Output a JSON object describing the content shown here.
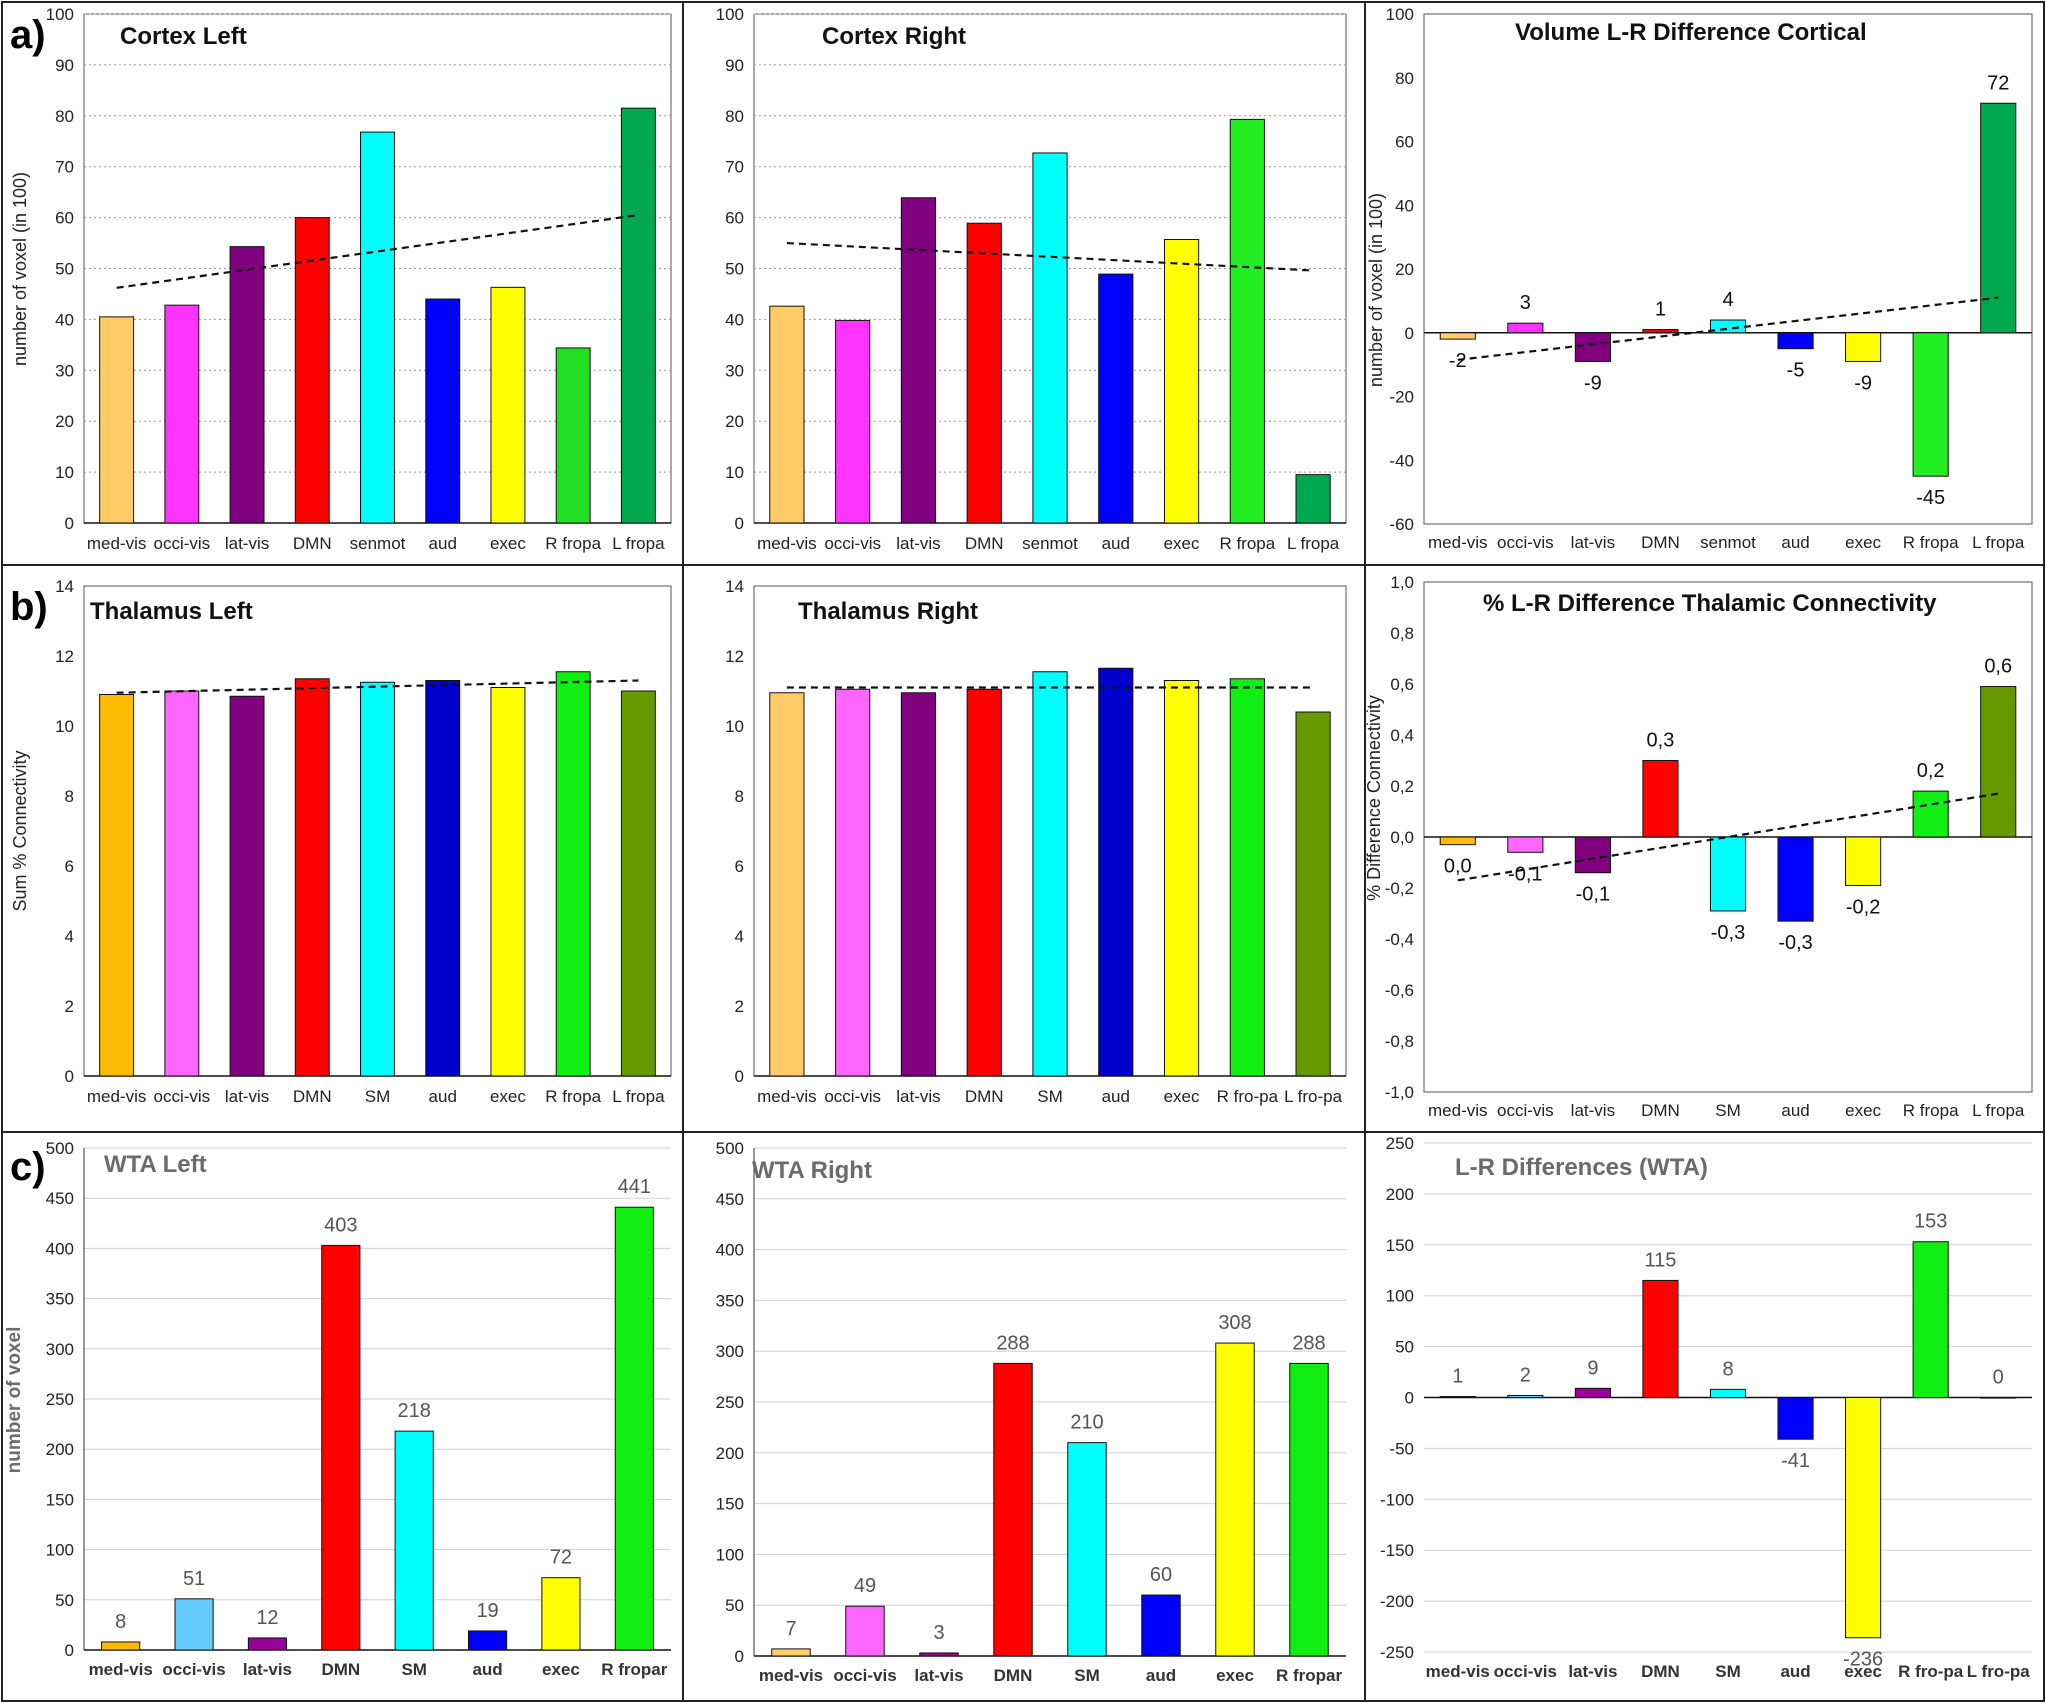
{
  "panel_labels": [
    "a)",
    "b)",
    "c)"
  ],
  "chart_data": [
    {
      "type": "bar",
      "title": "Cortex Left",
      "ylabel": "number of voxel (in 100)",
      "categories": [
        "med-vis",
        "occi-vis",
        "lat-vis",
        "DMN",
        "senmot",
        "aud",
        "exec",
        "R fropa",
        "L fropa"
      ],
      "values": [
        40.5,
        42.8,
        54.3,
        60.0,
        76.8,
        44.0,
        46.3,
        34.4,
        81.5
      ],
      "colors": [
        "#ffcc66",
        "#ff33ff",
        "#800080",
        "#ff0000",
        "#00ffff",
        "#0000ff",
        "#ffff00",
        "#22dd22",
        "#00a850"
      ],
      "ylim": [
        0,
        100
      ],
      "ystep": 10,
      "grid": true,
      "trend": [
        46.2,
        60.5
      ]
    },
    {
      "type": "bar",
      "title": "Cortex Right",
      "ylabel": "",
      "categories": [
        "med-vis",
        "occi-vis",
        "lat-vis",
        "DMN",
        "senmot",
        "aud",
        "exec",
        "R fropa",
        "L fropa"
      ],
      "values": [
        42.6,
        39.8,
        63.9,
        58.9,
        72.7,
        48.9,
        55.7,
        79.3,
        9.5
      ],
      "colors": [
        "#ffcc66",
        "#ff33ff",
        "#800080",
        "#ff0000",
        "#00ffff",
        "#0000ff",
        "#ffff00",
        "#22ee22",
        "#00a850"
      ],
      "ylim": [
        0,
        100
      ],
      "ystep": 10,
      "grid": true,
      "trend": [
        55.0,
        49.6
      ]
    },
    {
      "type": "bar",
      "title": "Volume L-R Difference Cortical",
      "ylabel": "number of voxel (in 100)",
      "categories": [
        "med-vis",
        "occi-vis",
        "lat-vis",
        "DMN",
        "senmot",
        "aud",
        "exec",
        "R fropa",
        "L fropa"
      ],
      "values": [
        -2,
        3,
        -9,
        1,
        4,
        -5,
        -9,
        -45,
        72
      ],
      "labels": [
        "-2",
        "3",
        "-9",
        "1",
        "4",
        "-5",
        "-9",
        "-45",
        "72"
      ],
      "colors": [
        "#ffcc66",
        "#ff33ff",
        "#800080",
        "#ff0000",
        "#00ffff",
        "#0000ff",
        "#ffff00",
        "#22ee22",
        "#00a850"
      ],
      "ylim": [
        -60,
        100
      ],
      "ystep": 20,
      "grid": false,
      "trend": [
        -8.5,
        11
      ]
    },
    {
      "type": "bar",
      "title": "Thalamus Left",
      "ylabel": "Sum % Connectivity",
      "categories": [
        "med-vis",
        "occi-vis",
        "lat-vis",
        "DMN",
        "SM",
        "aud",
        "exec",
        "R fropa",
        "L fropa"
      ],
      "values": [
        10.9,
        11.0,
        10.85,
        11.35,
        11.25,
        11.3,
        11.1,
        11.55,
        11.0
      ],
      "colors": [
        "#ffbb00",
        "#ff66ff",
        "#800080",
        "#ff0000",
        "#00ffff",
        "#0000cc",
        "#ffff00",
        "#11ee11",
        "#669900"
      ],
      "ylim": [
        0,
        14
      ],
      "ystep": 2,
      "grid": false,
      "trend": [
        10.95,
        11.3
      ]
    },
    {
      "type": "bar",
      "title": "Thalamus Right",
      "ylabel": "",
      "categories": [
        "med-vis",
        "occi-vis",
        "lat-vis",
        "DMN",
        "SM",
        "aud",
        "exec",
        "R fro-pa",
        "L fro-pa"
      ],
      "values": [
        10.95,
        11.05,
        10.95,
        11.05,
        11.55,
        11.65,
        11.3,
        11.35,
        10.4
      ],
      "colors": [
        "#ffcc66",
        "#ff66ff",
        "#800080",
        "#ff0000",
        "#00ffff",
        "#0000cc",
        "#ffff00",
        "#11ee11",
        "#669900"
      ],
      "ylim": [
        0,
        14
      ],
      "ystep": 2,
      "grid": false,
      "trend": [
        11.1,
        11.1
      ]
    },
    {
      "type": "bar",
      "title": "% L-R  Difference Thalamic Connectivity",
      "ylabel": "% Difference Connectivity",
      "categories": [
        "med-vis",
        "occi-vis",
        "lat-vis",
        "DMN",
        "SM",
        "aud",
        "exec",
        "R fropa",
        "L fropa"
      ],
      "values": [
        -0.03,
        -0.06,
        -0.14,
        0.3,
        -0.29,
        -0.33,
        -0.19,
        0.18,
        0.59
      ],
      "labels": [
        "0,0",
        "-0,1",
        "-0,1",
        "0,3",
        "-0,3",
        "-0,3",
        "-0,2",
        "0,2",
        "0,6"
      ],
      "ticks": [
        "-1,0",
        "-0,8",
        "-0,6",
        "-0,4",
        "-0,2",
        "0,0",
        "0,2",
        "0,4",
        "0,6",
        "0,8",
        "1,0"
      ],
      "colors": [
        "#ffbb00",
        "#ff66ff",
        "#800080",
        "#ff0000",
        "#00ffff",
        "#0000ff",
        "#ffff00",
        "#11ee11",
        "#669900"
      ],
      "ylim": [
        -1.0,
        1.0
      ],
      "ystep": 0.2,
      "grid": false,
      "trend": [
        -0.17,
        0.17
      ]
    },
    {
      "type": "bar",
      "title": "WTA Left",
      "ylabel": "number of voxel",
      "categories": [
        "med-vis",
        "occi-vis",
        "lat-vis",
        "DMN",
        "SM",
        "aud",
        "exec",
        "R fropar"
      ],
      "values": [
        8,
        51,
        12,
        403,
        218,
        19,
        72,
        441
      ],
      "labels": [
        "8",
        "51",
        "12",
        "403",
        "218",
        "19",
        "72",
        "441"
      ],
      "colors": [
        "#ffbb00",
        "#66ccff",
        "#990099",
        "#ff0000",
        "#00ffff",
        "#0000ff",
        "#ffff00",
        "#11ee11"
      ],
      "ylim": [
        0,
        500
      ],
      "ystep": 50,
      "grid": true
    },
    {
      "type": "bar",
      "title": "WTA Right",
      "ylabel": "",
      "categories": [
        "med-vis",
        "occi-vis",
        "lat-vis",
        "DMN",
        "SM",
        "aud",
        "exec",
        "R fropar"
      ],
      "values": [
        7,
        49,
        3,
        288,
        210,
        60,
        308,
        288
      ],
      "labels": [
        "7",
        "49",
        "3",
        "288",
        "210",
        "60",
        "308",
        "288"
      ],
      "colors": [
        "#ffcc66",
        "#ff66ff",
        "#990099",
        "#ff0000",
        "#00ffff",
        "#0000ff",
        "#ffff00",
        "#11ee11"
      ],
      "ylim": [
        0,
        500
      ],
      "ystep": 50,
      "grid": true
    },
    {
      "type": "bar",
      "title": "L-R Differences (WTA)",
      "ylabel": "",
      "categories": [
        "med-vis",
        "occi-vis",
        "lat-vis",
        "DMN",
        "SM",
        "aud",
        "exec",
        "R fro-pa",
        "L fro-pa"
      ],
      "values": [
        1,
        2,
        9,
        115,
        8,
        -41,
        -236,
        153,
        0
      ],
      "labels": [
        "1",
        "2",
        "9",
        "115",
        "8",
        "-41",
        "-236",
        "153",
        "0"
      ],
      "colors": [
        "#ffbb00",
        "#66ccff",
        "#990099",
        "#ff0000",
        "#00ffff",
        "#0000ff",
        "#ffff00",
        "#11ee11",
        "#669900"
      ],
      "ylim": [
        -250,
        250
      ],
      "ystep": 50,
      "grid": true
    }
  ]
}
